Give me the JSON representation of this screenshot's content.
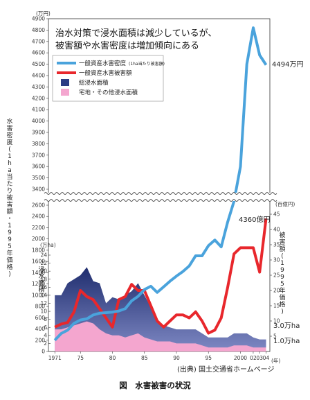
{
  "chart_data": {
    "type": "line",
    "title_lines": [
      "治水対策で浸水面積は減少しているが、",
      "被害額や水害密度は増加傾向にある"
    ],
    "unit_left_top": "(万円)",
    "unit_inner_left": "(万ha)",
    "unit_right": "(百億円)",
    "unit_year": "(年)",
    "y_left_label_density": "水害密度(1ha当たり被害額・1995年価格)",
    "y_area_label": "浸水面積",
    "y_right_label": "被害額(1995年価格)",
    "y_left_upper_ticks": [
      3400,
      3500,
      3600,
      3700,
      3800,
      3900,
      4000,
      4100,
      4200,
      4300,
      4400,
      4500,
      4600,
      4700,
      4800,
      4900
    ],
    "y_left_lower_ticks": [
      0,
      200,
      400,
      600,
      800,
      1000,
      1200,
      1400,
      1600,
      1800,
      2000,
      2200,
      2400,
      2600
    ],
    "y_area_ticks": [
      2,
      4,
      6,
      8,
      10,
      12,
      14,
      16,
      18,
      20,
      22,
      24
    ],
    "y_right_ticks": [
      5,
      10,
      15,
      20,
      25,
      30,
      35,
      40,
      45
    ],
    "x_tick_labels": [
      "1971",
      "75",
      "80",
      "85",
      "90",
      "95",
      "2000",
      "02",
      "03",
      "04"
    ],
    "x_tick_years": [
      1971,
      1975,
      1980,
      1985,
      1990,
      1995,
      2000,
      2002,
      2003,
      2004
    ],
    "legend": [
      {
        "label": "一般資産水害密度",
        "sub": "(1ha当たり被害額)",
        "color": "#4aa3dc",
        "kind": "line"
      },
      {
        "label": "一般資産水害被害額",
        "sub": "",
        "color": "#e8272c",
        "kind": "line"
      },
      {
        "label": "総浸水面積",
        "sub": "",
        "color": "#2b3c84",
        "kind": "area"
      },
      {
        "label": "宅地・その他浸水面積",
        "sub": "",
        "color": "#f4a6cf",
        "kind": "area"
      }
    ],
    "annotations": {
      "density_end": "4494万円",
      "damage_end": "4360億円",
      "total_area_end": "3.0万ha",
      "residential_area_end": "1.0万ha"
    },
    "source": "(出典) 国土交通省ホームページ",
    "caption": "図　水害被害の状況",
    "series": [
      {
        "name": "一般資産水害密度",
        "unit": "万円/ha",
        "x": [
          1971,
          1972,
          1973,
          1974,
          1975,
          1976,
          1977,
          1978,
          1979,
          1980,
          1981,
          1982,
          1983,
          1984,
          1985,
          1986,
          1987,
          1988,
          1989,
          1990,
          1991,
          1992,
          1993,
          1994,
          1995,
          1996,
          1997,
          1998,
          1999,
          2000,
          2001,
          2002,
          2003,
          2004
        ],
        "values": [
          200,
          320,
          380,
          500,
          560,
          580,
          650,
          680,
          690,
          700,
          720,
          760,
          900,
          980,
          1100,
          1160,
          1050,
          1150,
          1250,
          1340,
          1420,
          1520,
          1700,
          1700,
          1880,
          1980,
          1860,
          2300,
          2800,
          3600,
          4500,
          4820,
          4580,
          4494
        ]
      },
      {
        "name": "一般資産水害被害額",
        "unit": "百億円",
        "x": [
          1971,
          1972,
          1973,
          1974,
          1975,
          1976,
          1977,
          1978,
          1979,
          1980,
          1981,
          1982,
          1983,
          1984,
          1985,
          1986,
          1987,
          1988,
          1989,
          1990,
          1991,
          1992,
          1993,
          1994,
          1995,
          1996,
          1997,
          1998,
          1999,
          2000,
          2001,
          2002,
          2003,
          2004
        ],
        "values": [
          8,
          9,
          9.5,
          13,
          20,
          18,
          17,
          14,
          11,
          8,
          17,
          18,
          22,
          20,
          20,
          15,
          10,
          8,
          10,
          12,
          12,
          11,
          13,
          10,
          6,
          7,
          11,
          21,
          32,
          34,
          34,
          34,
          26,
          43.6
        ]
      },
      {
        "name": "総浸水面積",
        "unit": "万ha",
        "x": [
          1971,
          1972,
          1973,
          1974,
          1975,
          1976,
          1977,
          1978,
          1979,
          1980,
          1981,
          1982,
          1983,
          1984,
          1985,
          1986,
          1987,
          1988,
          1989,
          1990,
          1991,
          1992,
          1993,
          1994,
          1995,
          1996,
          1997,
          1998,
          1999,
          2000,
          2001,
          2002,
          2003,
          2004
        ],
        "values": [
          14,
          14,
          17,
          18,
          19,
          21,
          17.5,
          17,
          12,
          13.5,
          13,
          14,
          15,
          17,
          14,
          11,
          7.5,
          6.5,
          6,
          5.5,
          5.5,
          5.5,
          5.5,
          4.5,
          3.5,
          3.5,
          3.5,
          3.5,
          4.5,
          4.5,
          4.5,
          3.5,
          3,
          3.0
        ]
      },
      {
        "name": "宅地・その他浸水面積",
        "unit": "万ha",
        "x": [
          1971,
          1972,
          1973,
          1974,
          1975,
          1976,
          1977,
          1978,
          1979,
          1980,
          1981,
          1982,
          1983,
          1984,
          1985,
          1986,
          1987,
          1988,
          1989,
          1990,
          1991,
          1992,
          1993,
          1994,
          1995,
          1996,
          1997,
          1998,
          1999,
          2000,
          2001,
          2002,
          2003,
          2004
        ],
        "values": [
          5.5,
          5.5,
          6,
          6.5,
          7,
          7.5,
          7,
          5.5,
          4.5,
          4,
          4,
          3.5,
          4,
          4.5,
          3.5,
          3,
          2.5,
          2.5,
          2.5,
          2,
          2,
          2,
          2,
          1.5,
          1,
          1,
          1,
          1,
          1.5,
          1.5,
          1.5,
          1,
          1,
          1.0
        ]
      }
    ]
  }
}
